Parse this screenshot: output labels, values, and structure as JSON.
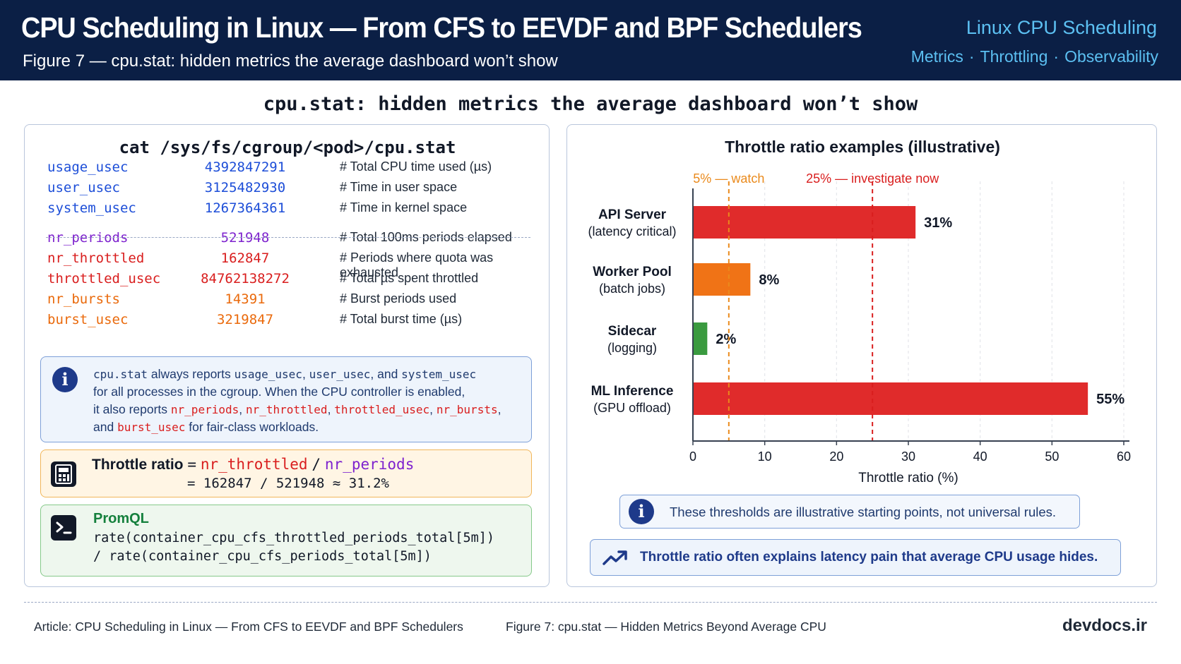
{
  "header": {
    "title": "CPU Scheduling in Linux — From CFS to EEVDF and BPF Schedulers",
    "subtitle": "Figure 7 — cpu.stat: hidden metrics the average dashboard won’t show",
    "brand": "Linux CPU Scheduling",
    "tags": [
      "Metrics",
      "Throttling",
      "Observability"
    ]
  },
  "page_title": "cpu.stat: hidden metrics the average dashboard won’t show",
  "left": {
    "command": "cat /sys/fs/cgroup/<pod>/cpu.stat",
    "stats": [
      {
        "key": "usage_usec",
        "value": "4392847291",
        "comment": "# Total CPU time used (µs)",
        "color": "#1d4ed8"
      },
      {
        "key": "user_usec",
        "value": "3125482930",
        "comment": "# Time in user space",
        "color": "#1d4ed8"
      },
      {
        "key": "system_usec",
        "value": "1267364361",
        "comment": "# Time in kernel space",
        "color": "#1d4ed8"
      },
      {
        "key": "nr_periods",
        "value": "521948",
        "comment": "# Total 100ms periods elapsed",
        "color": "#7e22ce"
      },
      {
        "key": "nr_throttled",
        "value": "162847",
        "comment": "# Periods where quota was exhausted",
        "color": "#d91e1e"
      },
      {
        "key": "throttled_usec",
        "value": "84762138272",
        "comment": "# Total µs spent throttled",
        "color": "#d91e1e"
      },
      {
        "key": "nr_bursts",
        "value": "14391",
        "comment": "# Burst periods used",
        "color": "#ea6a0c"
      },
      {
        "key": "burst_usec",
        "value": "3219847",
        "comment": "# Total burst time (µs)",
        "color": "#ea6a0c"
      }
    ],
    "info": {
      "p1": "cpu.stat",
      "p2": " always reports ",
      "p3": "usage_usec",
      "p4": ", ",
      "p5": "user_usec",
      "p6": ", and ",
      "p7": "system_usec",
      "p8": "for all processes in the cgroup. When the CPU controller is enabled,",
      "p9": "it also reports ",
      "m1": "nr_periods",
      "m2": "nr_throttled",
      "m3": "throttled_usec",
      "m4": "nr_bursts",
      "p10": "and ",
      "m5": "burst_usec",
      "p11": " for fair-class workloads."
    },
    "ratio": {
      "label": "Throttle ratio",
      "eq": "=",
      "numerator": "nr_throttled",
      "slash": "/",
      "denominator": "nr_periods",
      "line2": "= 162847 / 521948 ≈ 31.2%"
    },
    "promql": {
      "title": "PromQL",
      "line1": "rate(container_cpu_cfs_throttled_periods_total[5m])",
      "line2": "/ rate(container_cpu_cfs_periods_total[5m])"
    }
  },
  "chart_data": {
    "type": "bar",
    "orientation": "horizontal",
    "title": "Throttle ratio examples (illustrative)",
    "xlabel": "Throttle ratio (%)",
    "xlim": [
      0,
      60
    ],
    "xticks": [
      0,
      10,
      20,
      30,
      40,
      50,
      60
    ],
    "grid": true,
    "categories": [
      {
        "name": "API Server",
        "sub": "(latency critical)",
        "value": 31,
        "label": "31%",
        "color": "#e02b2b"
      },
      {
        "name": "Worker Pool",
        "sub": "(batch jobs)",
        "value": 8,
        "label": "8%",
        "color": "#f07316"
      },
      {
        "name": "Sidecar",
        "sub": "(logging)",
        "value": 2,
        "label": "2%",
        "color": "#3a9a3f"
      },
      {
        "name": "ML Inference",
        "sub": "(GPU offload)",
        "value": 55,
        "label": "55%",
        "color": "#e02b2b"
      }
    ],
    "thresholds": [
      {
        "value": 5,
        "label": "5% — watch",
        "color": "#ea8a1c"
      },
      {
        "value": 25,
        "label": "25% — investigate now",
        "color": "#d91e1e"
      }
    ]
  },
  "notes": {
    "note1": "These thresholds are illustrative starting points, not universal rules.",
    "note2": "Throttle ratio often explains latency pain that average CPU usage hides."
  },
  "footer": {
    "left": "Article: CPU Scheduling in Linux — From CFS to EEVDF and BPF Schedulers",
    "mid": "Figure 7: cpu.stat — Hidden Metrics Beyond Average CPU",
    "right": "devdocs.ir"
  }
}
